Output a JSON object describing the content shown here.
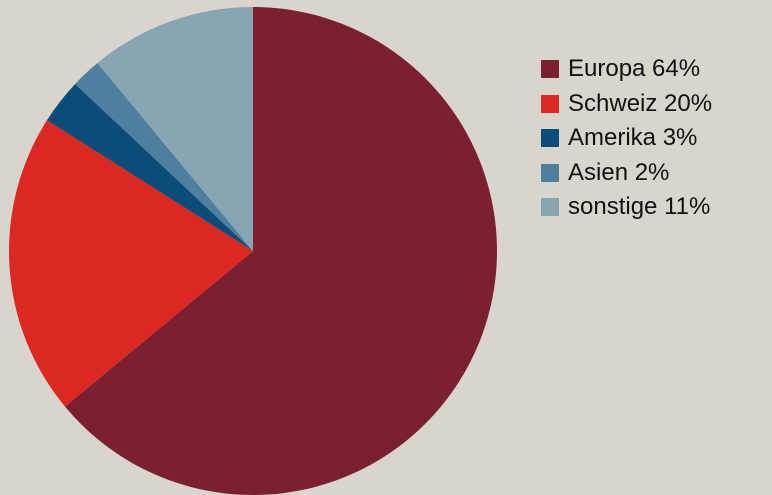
{
  "chart_data": {
    "type": "pie",
    "start_angle_deg": 0,
    "direction": "clockwise",
    "legend_position": "right",
    "slices": [
      {
        "label": "Europa 64%",
        "value": 64,
        "color": "#7b2030"
      },
      {
        "label": "Schweiz 20%",
        "value": 20,
        "color": "#dc2822"
      },
      {
        "label": "Amerika 3%",
        "value": 3,
        "color": "#0b4d78"
      },
      {
        "label": "Asien 2%",
        "value": 2,
        "color": "#4f7f9e"
      },
      {
        "label": "sonstige 11%",
        "value": 11,
        "color": "#87a5b3"
      }
    ]
  }
}
